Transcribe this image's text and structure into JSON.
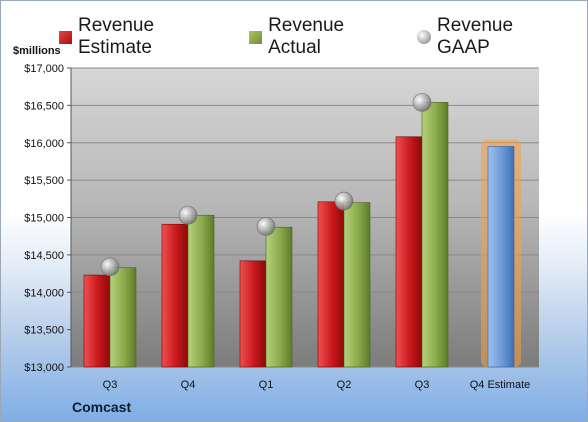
{
  "legend": {
    "estimate": "Revenue Estimate",
    "actual": "Revenue Actual",
    "gaap": "Revenue GAAP"
  },
  "unit_label": "$millions",
  "company": "Comcast",
  "colors": {
    "estimate": "#c8181c",
    "actual": "#8aaa4a",
    "gaap": "#a0a0a0",
    "forecast": "#6a9ad6",
    "forecast_glow": "#f5a040"
  },
  "chart_data": {
    "type": "bar",
    "categories": [
      "Q3",
      "Q4",
      "Q1",
      "Q2",
      "Q3",
      "Q4 Estimate"
    ],
    "series": [
      {
        "name": "Revenue Estimate",
        "values": [
          14230,
          14910,
          14420,
          15210,
          16080,
          null
        ]
      },
      {
        "name": "Revenue Actual",
        "values": [
          14330,
          15030,
          14870,
          15200,
          16540,
          15950
        ]
      },
      {
        "name": "Revenue GAAP",
        "type": "scatter",
        "values": [
          14340,
          15030,
          14880,
          15220,
          16540,
          null
        ]
      }
    ],
    "forecast_index": 5,
    "ylim": [
      13000,
      17000
    ],
    "yticks": [
      13000,
      13500,
      14000,
      14500,
      15000,
      15500,
      16000,
      16500,
      17000
    ],
    "ytick_labels": [
      "$13,000",
      "$13,500",
      "$14,000",
      "$14,500",
      "$15,000",
      "$15,500",
      "$16,000",
      "$16,500",
      "$17,000"
    ],
    "grid": true,
    "legend_position": "top"
  }
}
